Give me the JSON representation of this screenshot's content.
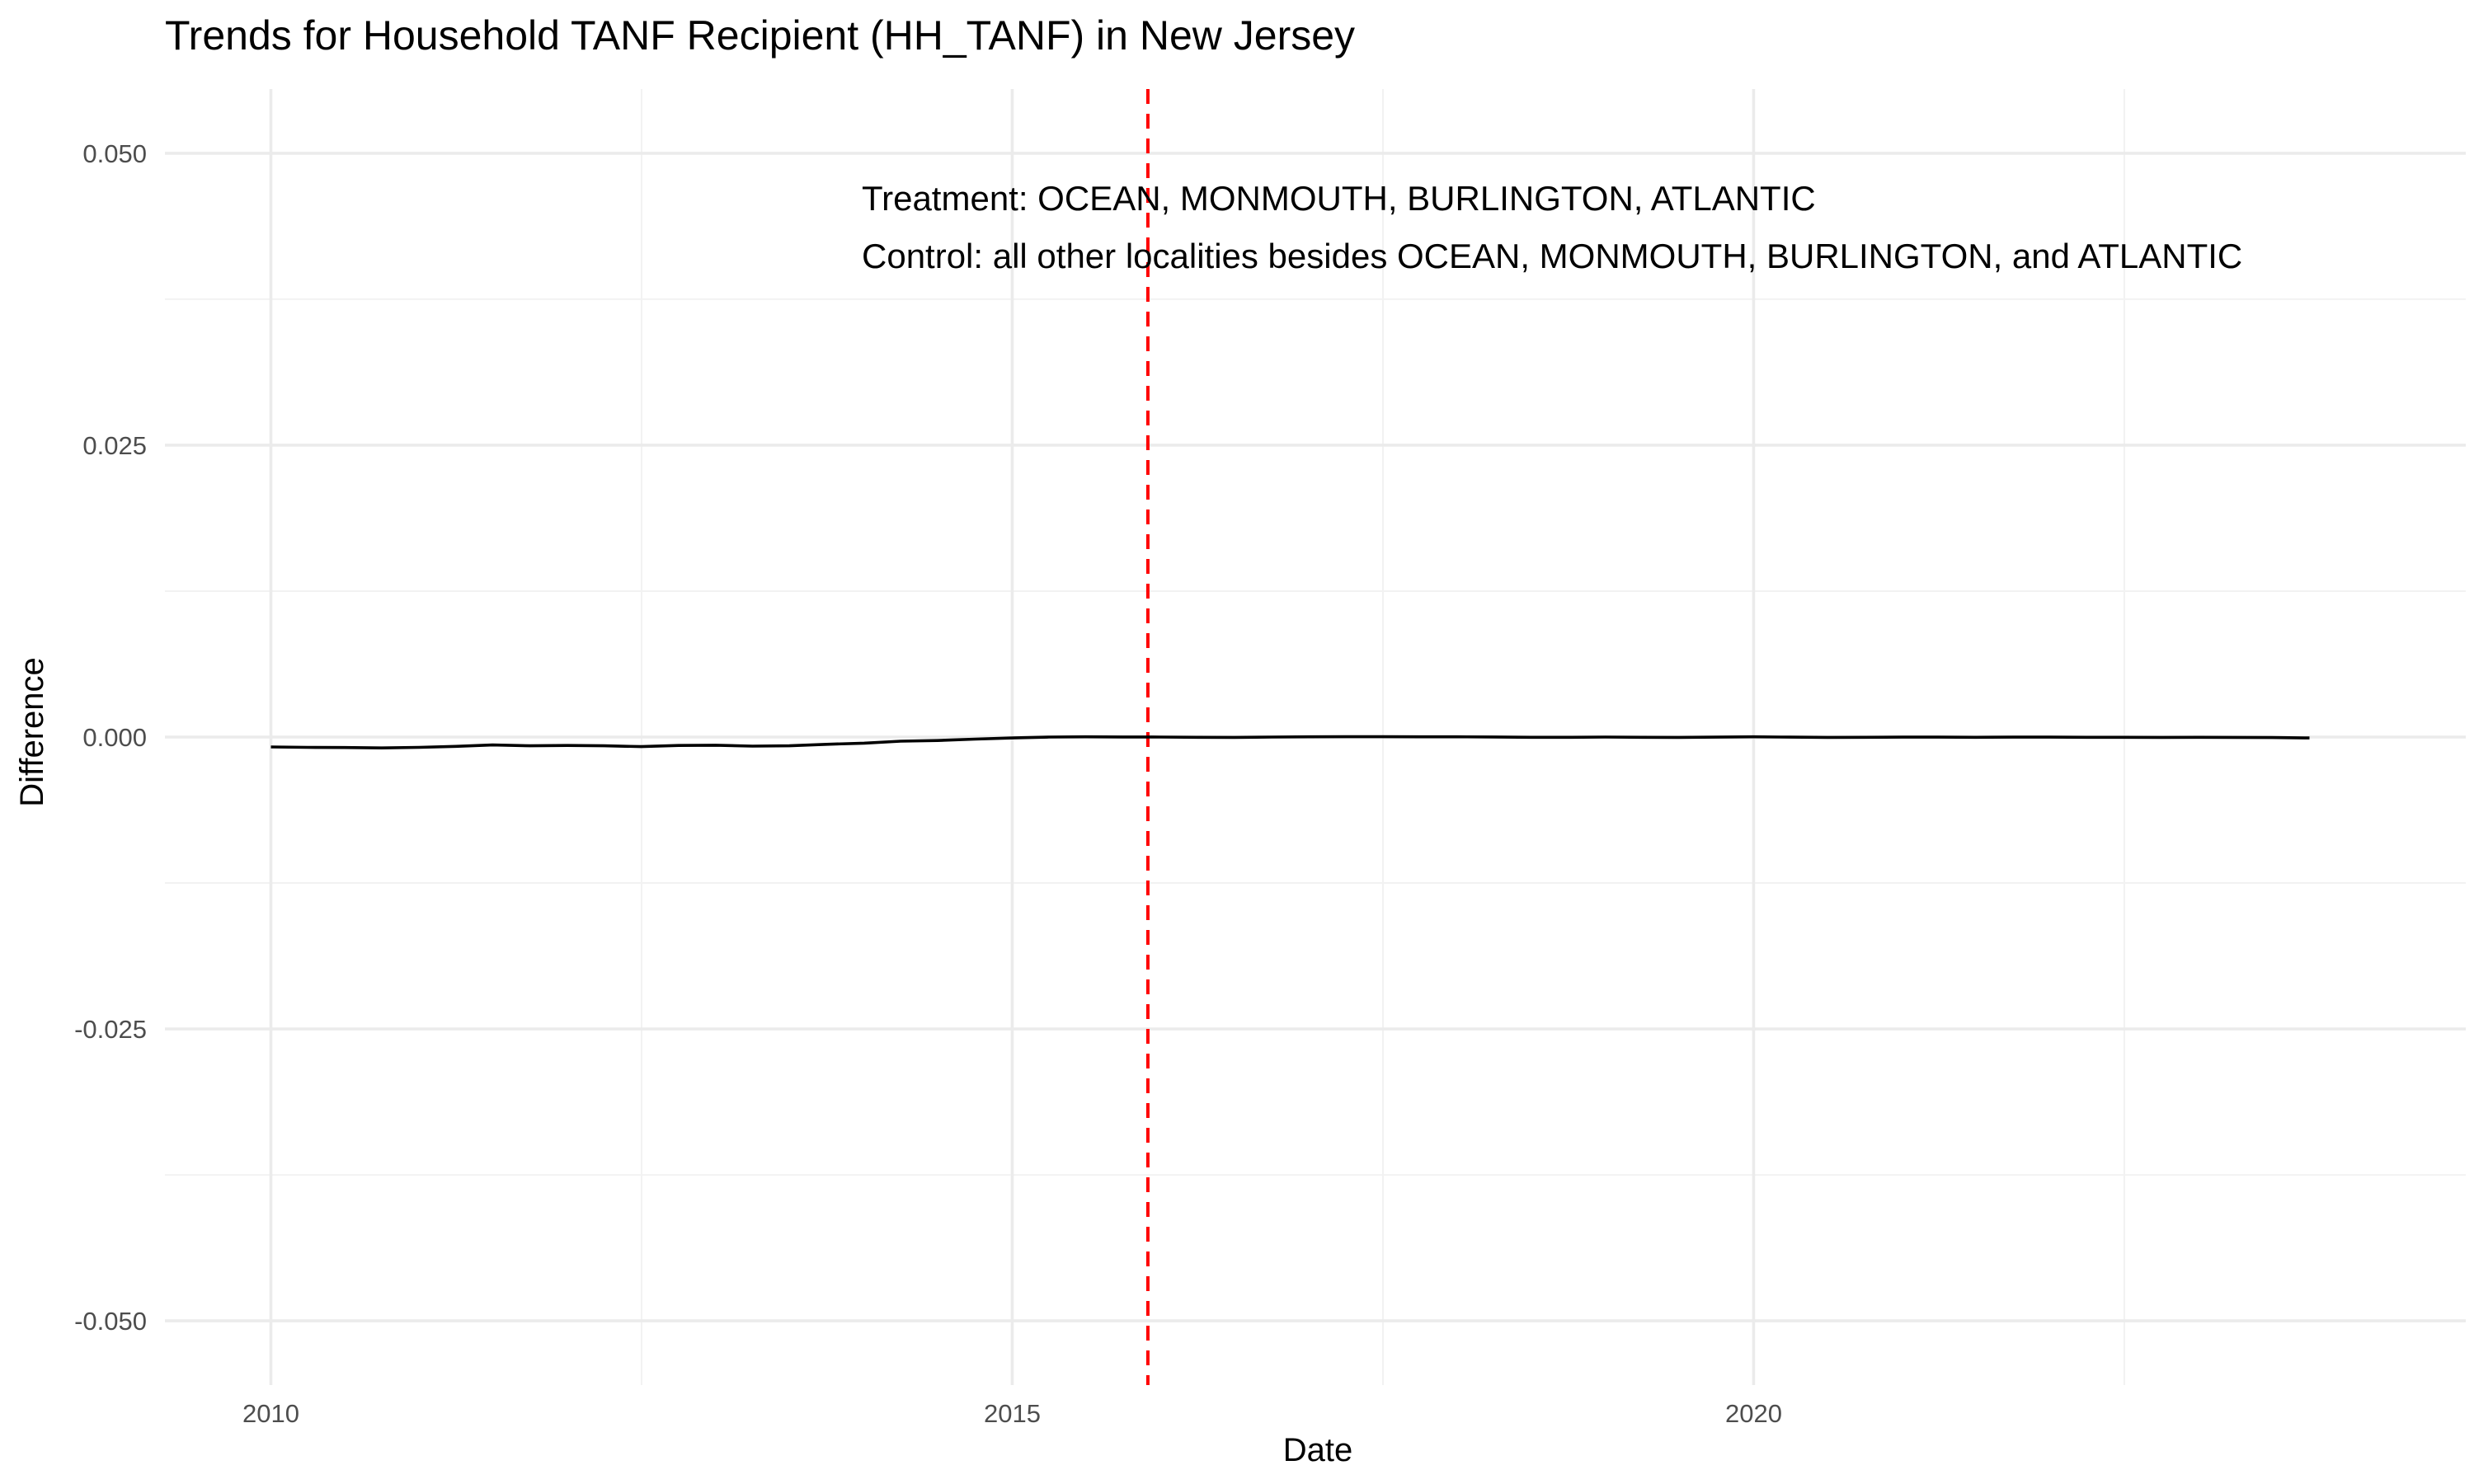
{
  "chart_data": {
    "type": "line",
    "title": "Trends for Household TANF Recipient (HH_TANF) in New Jersey",
    "xlabel": "Date",
    "ylabel": "Difference",
    "xlim": [
      "2009-04-15",
      "2024-10-20"
    ],
    "ylim": [
      -0.0555,
      0.0555
    ],
    "x_ticks": [
      "2010-01-01",
      "2015-01-01",
      "2020-01-01"
    ],
    "x_tick_labels": [
      "2010",
      "2015",
      "2020"
    ],
    "y_ticks": [
      -0.05,
      -0.025,
      0.0,
      0.025,
      0.05
    ],
    "y_tick_labels": [
      "-0.050",
      "-0.025",
      "0.000",
      "0.025",
      "0.050"
    ],
    "grid": true,
    "intervention_line": {
      "x": "2015-12-01",
      "color": "#ff0000",
      "style": "dashed"
    },
    "annotations": [
      "Treatment: OCEAN, MONMOUTH, BURLINGTON, ATLANTIC",
      "Control: all other localities besides OCEAN, MONMOUTH, BURLINGTON, and ATLANTIC"
    ],
    "series": [
      {
        "color": "#000000",
        "x": [
          "2010-01-01",
          "2010-04-01",
          "2010-07-01",
          "2010-10-01",
          "2011-01-01",
          "2011-04-01",
          "2011-07-01",
          "2011-10-01",
          "2012-01-01",
          "2012-04-01",
          "2012-07-01",
          "2012-10-01",
          "2013-01-01",
          "2013-04-01",
          "2013-07-01",
          "2013-10-01",
          "2014-01-01",
          "2014-04-01",
          "2014-07-01",
          "2014-10-01",
          "2015-01-01",
          "2015-04-01",
          "2015-07-01",
          "2015-10-01",
          "2016-01-01",
          "2016-04-01",
          "2016-07-01",
          "2016-10-01",
          "2017-01-01",
          "2017-04-01",
          "2017-07-01",
          "2017-10-01",
          "2018-01-01",
          "2018-04-01",
          "2018-07-01",
          "2018-10-01",
          "2019-01-01",
          "2019-04-01",
          "2019-07-01",
          "2019-10-01",
          "2020-01-01",
          "2020-04-01",
          "2020-07-01",
          "2020-10-01",
          "2021-01-01",
          "2021-04-01",
          "2021-07-01",
          "2021-10-01",
          "2022-01-01",
          "2022-04-01",
          "2022-07-01",
          "2022-10-01",
          "2023-01-01",
          "2023-04-01",
          "2023-07-01",
          "2023-10-01"
        ],
        "values": [
          -0.00085,
          -0.00088,
          -0.0009,
          -0.00093,
          -0.00088,
          -0.0008,
          -0.00068,
          -0.00075,
          -0.00072,
          -0.00075,
          -0.00082,
          -0.00072,
          -0.0007,
          -0.00078,
          -0.00075,
          -0.00062,
          -0.00052,
          -0.00035,
          -0.0003,
          -0.00018,
          -8e-05,
          0.0,
          2e-05,
          1e-05,
          0.0,
          -2e-05,
          -3e-05,
          0.0,
          2e-05,
          3e-05,
          3e-05,
          2e-05,
          2e-05,
          1e-05,
          -2e-05,
          -2e-05,
          0.0,
          -2e-05,
          -3e-05,
          -1e-05,
          2e-05,
          -1e-05,
          -3e-05,
          -2e-05,
          -1e-05,
          -1e-05,
          -2e-05,
          -1e-05,
          -1e-05,
          -2e-05,
          -2e-05,
          -3e-05,
          -2e-05,
          -3e-05,
          -4e-05,
          -8e-05
        ]
      }
    ]
  }
}
